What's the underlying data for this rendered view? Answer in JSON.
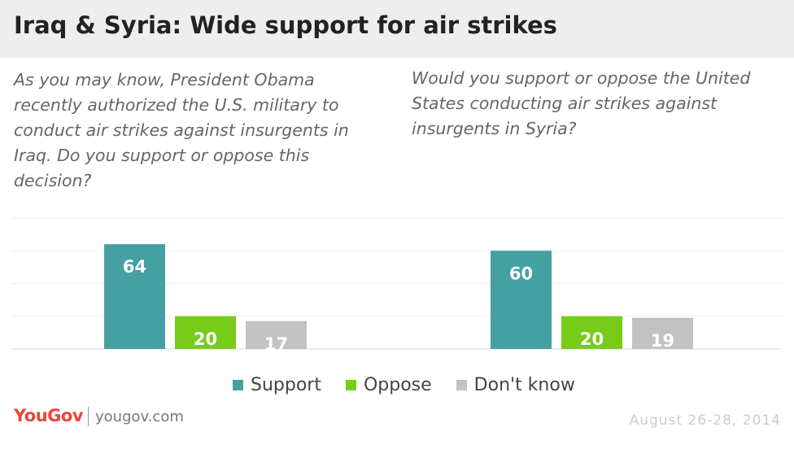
{
  "title": "Iraq & Syria: Wide support for air strikes",
  "footer": {
    "logo_text": "YouGov",
    "site": "yougov.com",
    "date": "August 26-28, 2014"
  },
  "colors": {
    "support": "#45a0a2",
    "oppose": "#77cc1a",
    "dont_know": "#c2c2c2"
  },
  "chart_data": [
    {
      "type": "bar",
      "title": "As you may know, President Obama recently authorized the U.S. military to conduct air strikes against insurgents in Iraq. Do you support or oppose this decision?",
      "categories": [
        "Support",
        "Oppose",
        "Don't know"
      ],
      "values": [
        64,
        20,
        17
      ],
      "ylim": [
        0,
        80
      ],
      "grid": true,
      "legend": "bottom"
    },
    {
      "type": "bar",
      "title": "Would you support or oppose the United States conducting air strikes against insurgents in Syria?",
      "categories": [
        "Support",
        "Oppose",
        "Don't know"
      ],
      "values": [
        60,
        20,
        19
      ],
      "ylim": [
        0,
        80
      ],
      "grid": true,
      "legend": "bottom"
    }
  ],
  "legend": [
    {
      "label": "Support",
      "color": "#45a0a2"
    },
    {
      "label": "Oppose",
      "color": "#77cc1a"
    },
    {
      "label": "Don't know",
      "color": "#c2c2c2"
    }
  ]
}
